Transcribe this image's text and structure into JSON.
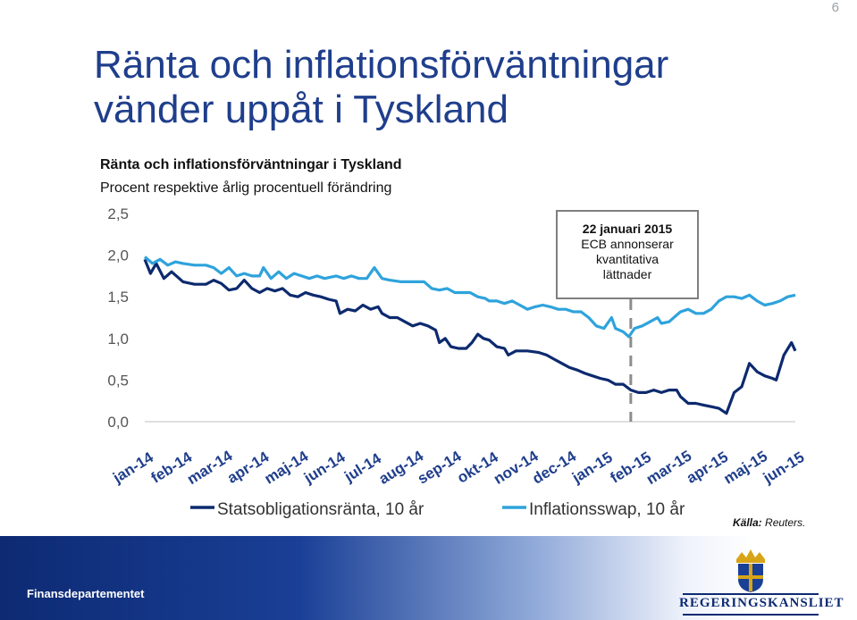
{
  "page_number": "6",
  "title_line1": "Ränta och inflationsförväntningar",
  "title_line2": "vänder uppåt i Tyskland",
  "source_label": "Källa:",
  "source_value": "Reuters.",
  "footer_org": "Finansdepartementet",
  "logo_text": "REGERINGSKANSLIET",
  "colors": {
    "title": "#1f3e8c",
    "bond": "#0d2a6e",
    "swap": "#2ea3dc",
    "annotation_line": "#8c8c8c"
  },
  "chart_data": {
    "type": "line",
    "title": "Ränta och inflationsförväntningar i Tyskland",
    "subtitle": "Procent respektive årlig procentuell förändring",
    "ylim": [
      0,
      2.5
    ],
    "yticks": [
      "0,0",
      "0,5",
      "1,0",
      "1,5",
      "2,0",
      "2,5"
    ],
    "categories": [
      "jan-14",
      "feb-14",
      "mar-14",
      "apr-14",
      "maj-14",
      "jun-14",
      "jul-14",
      "aug-14",
      "sep-14",
      "okt-14",
      "nov-14",
      "dec-14",
      "jan-15",
      "feb-15",
      "mar-15",
      "apr-15",
      "maj-15",
      "jun-15"
    ],
    "grid": false,
    "legend_position": "bottom",
    "annotation": {
      "x": 12.7,
      "lines": [
        "22 januari 2015",
        "ECB annonserar",
        "kvantitativa",
        "lättnader"
      ]
    },
    "series": [
      {
        "name": "Statsobligationsränta, 10 år",
        "points": [
          [
            0.0,
            1.95
          ],
          [
            0.15,
            1.78
          ],
          [
            0.3,
            1.9
          ],
          [
            0.5,
            1.72
          ],
          [
            0.7,
            1.8
          ],
          [
            1.0,
            1.68
          ],
          [
            1.3,
            1.65
          ],
          [
            1.6,
            1.65
          ],
          [
            1.8,
            1.7
          ],
          [
            2.0,
            1.66
          ],
          [
            2.2,
            1.58
          ],
          [
            2.4,
            1.6
          ],
          [
            2.6,
            1.7
          ],
          [
            2.8,
            1.6
          ],
          [
            3.0,
            1.55
          ],
          [
            3.2,
            1.6
          ],
          [
            3.4,
            1.57
          ],
          [
            3.6,
            1.6
          ],
          [
            3.8,
            1.52
          ],
          [
            4.0,
            1.5
          ],
          [
            4.2,
            1.55
          ],
          [
            4.4,
            1.52
          ],
          [
            4.6,
            1.5
          ],
          [
            4.8,
            1.47
          ],
          [
            5.0,
            1.45
          ],
          [
            5.1,
            1.3
          ],
          [
            5.3,
            1.35
          ],
          [
            5.5,
            1.33
          ],
          [
            5.7,
            1.4
          ],
          [
            5.9,
            1.35
          ],
          [
            6.1,
            1.38
          ],
          [
            6.2,
            1.3
          ],
          [
            6.4,
            1.25
          ],
          [
            6.6,
            1.25
          ],
          [
            6.8,
            1.2
          ],
          [
            7.0,
            1.15
          ],
          [
            7.2,
            1.18
          ],
          [
            7.4,
            1.15
          ],
          [
            7.6,
            1.1
          ],
          [
            7.7,
            0.95
          ],
          [
            7.85,
            1.0
          ],
          [
            8.0,
            0.9
          ],
          [
            8.2,
            0.88
          ],
          [
            8.4,
            0.88
          ],
          [
            8.55,
            0.95
          ],
          [
            8.7,
            1.05
          ],
          [
            8.85,
            1.0
          ],
          [
            9.0,
            0.98
          ],
          [
            9.2,
            0.9
          ],
          [
            9.4,
            0.88
          ],
          [
            9.5,
            0.8
          ],
          [
            9.7,
            0.85
          ],
          [
            10.0,
            0.85
          ],
          [
            10.3,
            0.83
          ],
          [
            10.5,
            0.8
          ],
          [
            10.7,
            0.75
          ],
          [
            10.9,
            0.7
          ],
          [
            11.1,
            0.65
          ],
          [
            11.3,
            0.62
          ],
          [
            11.5,
            0.58
          ],
          [
            11.7,
            0.55
          ],
          [
            11.9,
            0.52
          ],
          [
            12.1,
            0.5
          ],
          [
            12.3,
            0.45
          ],
          [
            12.5,
            0.45
          ],
          [
            12.7,
            0.38
          ],
          [
            12.9,
            0.35
          ],
          [
            13.1,
            0.35
          ],
          [
            13.3,
            0.38
          ],
          [
            13.5,
            0.35
          ],
          [
            13.7,
            0.38
          ],
          [
            13.9,
            0.38
          ],
          [
            14.0,
            0.3
          ],
          [
            14.2,
            0.22
          ],
          [
            14.4,
            0.22
          ],
          [
            14.6,
            0.2
          ],
          [
            14.8,
            0.18
          ],
          [
            15.0,
            0.16
          ],
          [
            15.2,
            0.1
          ],
          [
            15.4,
            0.35
          ],
          [
            15.6,
            0.42
          ],
          [
            15.8,
            0.7
          ],
          [
            16.0,
            0.6
          ],
          [
            16.2,
            0.55
          ],
          [
            16.4,
            0.52
          ],
          [
            16.5,
            0.5
          ],
          [
            16.7,
            0.8
          ],
          [
            16.9,
            0.95
          ],
          [
            17.0,
            0.85
          ]
        ]
      },
      {
        "name": "Inflationsswap, 10 år",
        "points": [
          [
            0.0,
            1.98
          ],
          [
            0.2,
            1.9
          ],
          [
            0.4,
            1.95
          ],
          [
            0.6,
            1.88
          ],
          [
            0.8,
            1.92
          ],
          [
            1.0,
            1.9
          ],
          [
            1.3,
            1.88
          ],
          [
            1.6,
            1.88
          ],
          [
            1.8,
            1.85
          ],
          [
            2.0,
            1.78
          ],
          [
            2.2,
            1.85
          ],
          [
            2.4,
            1.75
          ],
          [
            2.6,
            1.78
          ],
          [
            2.8,
            1.75
          ],
          [
            3.0,
            1.75
          ],
          [
            3.1,
            1.85
          ],
          [
            3.3,
            1.72
          ],
          [
            3.5,
            1.8
          ],
          [
            3.7,
            1.72
          ],
          [
            3.9,
            1.78
          ],
          [
            4.1,
            1.75
          ],
          [
            4.3,
            1.72
          ],
          [
            4.5,
            1.75
          ],
          [
            4.7,
            1.72
          ],
          [
            5.0,
            1.75
          ],
          [
            5.2,
            1.72
          ],
          [
            5.4,
            1.75
          ],
          [
            5.6,
            1.72
          ],
          [
            5.8,
            1.72
          ],
          [
            6.0,
            1.85
          ],
          [
            6.2,
            1.72
          ],
          [
            6.4,
            1.7
          ],
          [
            6.7,
            1.68
          ],
          [
            7.0,
            1.68
          ],
          [
            7.3,
            1.68
          ],
          [
            7.5,
            1.6
          ],
          [
            7.7,
            1.58
          ],
          [
            7.9,
            1.6
          ],
          [
            8.1,
            1.55
          ],
          [
            8.3,
            1.55
          ],
          [
            8.5,
            1.55
          ],
          [
            8.7,
            1.5
          ],
          [
            8.9,
            1.48
          ],
          [
            9.0,
            1.45
          ],
          [
            9.2,
            1.45
          ],
          [
            9.4,
            1.42
          ],
          [
            9.6,
            1.45
          ],
          [
            9.8,
            1.4
          ],
          [
            10.0,
            1.35
          ],
          [
            10.2,
            1.38
          ],
          [
            10.4,
            1.4
          ],
          [
            10.6,
            1.38
          ],
          [
            10.8,
            1.35
          ],
          [
            11.0,
            1.35
          ],
          [
            11.2,
            1.32
          ],
          [
            11.4,
            1.32
          ],
          [
            11.6,
            1.25
          ],
          [
            11.8,
            1.15
          ],
          [
            12.0,
            1.12
          ],
          [
            12.2,
            1.25
          ],
          [
            12.3,
            1.12
          ],
          [
            12.5,
            1.08
          ],
          [
            12.65,
            1.02
          ],
          [
            12.8,
            1.12
          ],
          [
            13.0,
            1.15
          ],
          [
            13.2,
            1.2
          ],
          [
            13.4,
            1.25
          ],
          [
            13.5,
            1.18
          ],
          [
            13.7,
            1.2
          ],
          [
            13.9,
            1.28
          ],
          [
            14.0,
            1.32
          ],
          [
            14.2,
            1.35
          ],
          [
            14.4,
            1.3
          ],
          [
            14.6,
            1.3
          ],
          [
            14.8,
            1.35
          ],
          [
            15.0,
            1.45
          ],
          [
            15.2,
            1.5
          ],
          [
            15.4,
            1.5
          ],
          [
            15.6,
            1.48
          ],
          [
            15.8,
            1.52
          ],
          [
            16.0,
            1.45
          ],
          [
            16.2,
            1.4
          ],
          [
            16.4,
            1.42
          ],
          [
            16.6,
            1.45
          ],
          [
            16.8,
            1.5
          ],
          [
            17.0,
            1.52
          ]
        ]
      }
    ]
  }
}
